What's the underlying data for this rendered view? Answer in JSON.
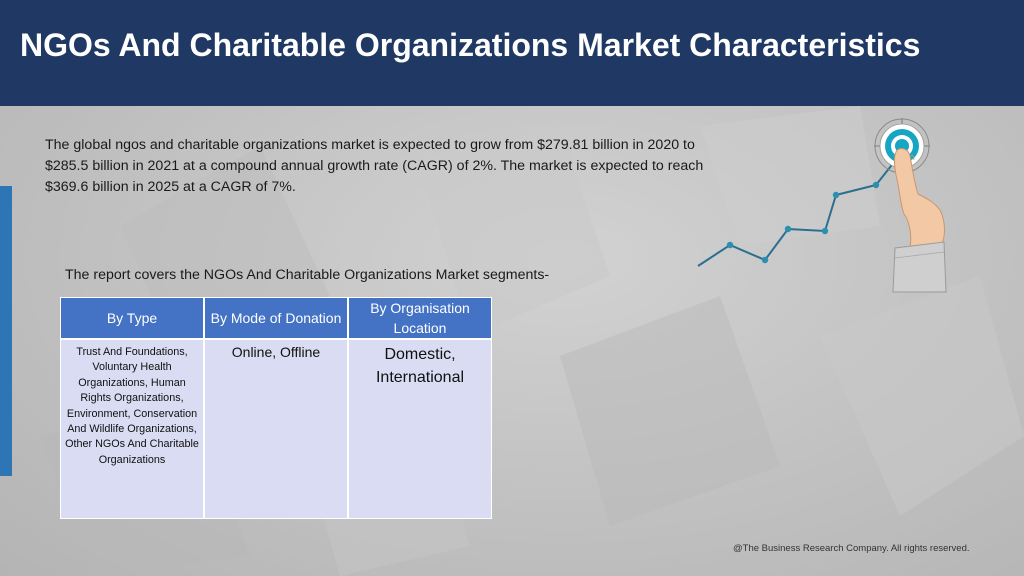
{
  "header": {
    "title": "NGOs And Charitable Organizations Market Characteristics"
  },
  "intro_text": "The global ngos and charitable organizations market is expected to grow from $279.81 billion in 2020 to $285.5 billion in 2021 at a compound annual growth rate (CAGR) of 2%. The market is expected to reach $369.6 billion in 2025 at a CAGR of 7%.",
  "segments_intro": "The report covers the NGOs And Charitable Organizations Market segments-",
  "segments_table": {
    "headers": [
      "By Type",
      "By Mode of Donation",
      "By Organisation Location"
    ],
    "cells": [
      "Trust And Foundations, Voluntary Health Organizations, Human Rights Organizations, Environment, Conservation And Wildlife Organizations, Other NGOs And Charitable Organizations",
      "Online, Offline",
      "Domestic, International"
    ]
  },
  "graphic": {
    "icon": "target-finger-growth-icon"
  },
  "footer": "@The Business Research Company. All rights reserved.",
  "colors": {
    "header_bg": "#1f3864",
    "table_header_bg": "#4472c4",
    "table_cell_bg": "#d9dcf2",
    "accent_bar": "#2e75b6",
    "chart_line": "#2a6f8f",
    "target_ring": "#17a5c4"
  }
}
